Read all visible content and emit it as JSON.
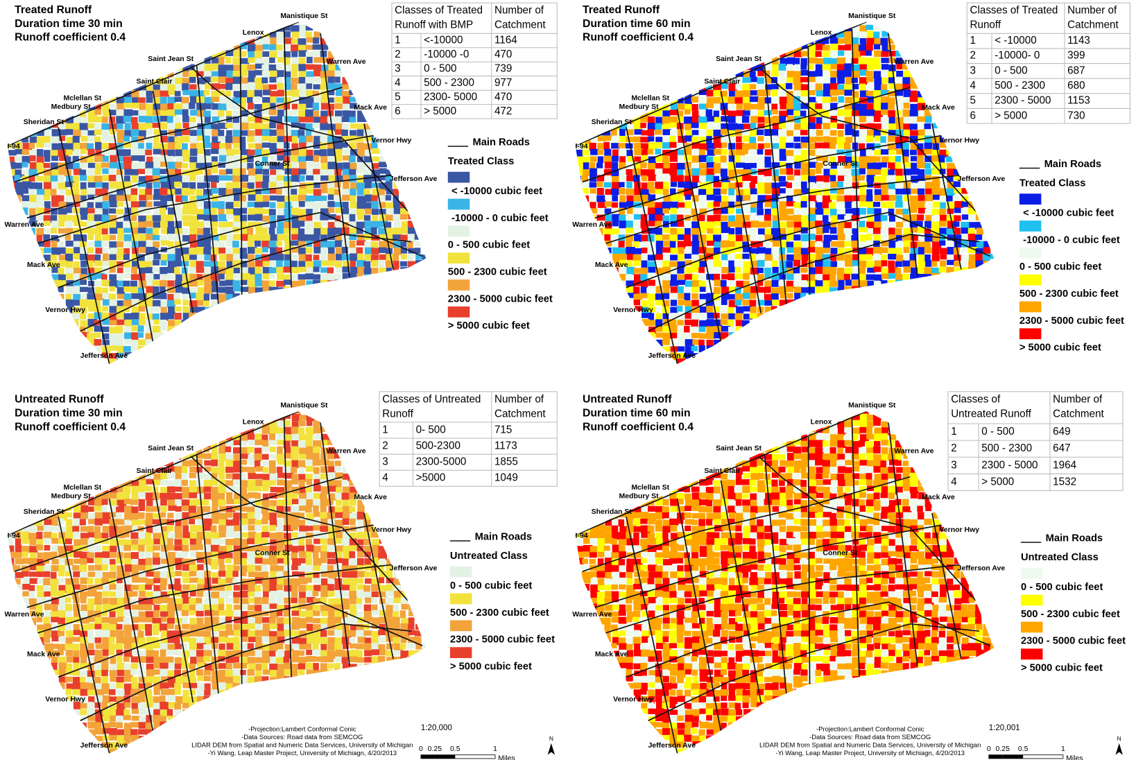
{
  "panels": [
    {
      "title": [
        "Treated Runoff",
        "Duration time 30 min",
        "Runoff coefficient 0.4"
      ],
      "table": {
        "header": [
          "Classes of Treated Runoff with BMP",
          "Number of Catchment"
        ],
        "rows": [
          [
            1,
            "<-10000",
            1164
          ],
          [
            2,
            "-10000 -0",
            470
          ],
          [
            3,
            "0 - 500",
            739
          ],
          [
            4,
            "500 - 2300",
            977
          ],
          [
            5,
            "2300- 5000",
            470
          ],
          [
            6,
            "> 5000",
            472
          ]
        ]
      },
      "legend": {
        "roads": "Main Roads",
        "title": "Treated Class",
        "classes": [
          {
            "label": "< -10000 cubic feet",
            "color": "#3a57a4"
          },
          {
            "label": "-10000 - 0 cubic feet",
            "color": "#3ab4e6"
          },
          {
            "label": "0 - 500 cubic feet",
            "color": "#e4f2e4"
          },
          {
            "label": "500 - 2300 cubic feet",
            "color": "#f2e23c"
          },
          {
            "label": "2300 - 5000 cubic feet",
            "color": "#f2a33a"
          },
          {
            "label": "> 5000 cubic feet",
            "color": "#e8402c"
          }
        ]
      }
    },
    {
      "title": [
        "Treated Runoff",
        "Duration time 60 min",
        "Runoff coefficient 0.4"
      ],
      "table": {
        "header": [
          "Classes of Treated Runoff",
          "Number of Catchment"
        ],
        "rows": [
          [
            1,
            "< -10000",
            1143
          ],
          [
            2,
            "-10000- 0",
            399
          ],
          [
            3,
            "0 - 500",
            687
          ],
          [
            4,
            "500 - 2300",
            680
          ],
          [
            5,
            "2300 - 5000",
            1153
          ],
          [
            6,
            "> 5000",
            730
          ]
        ]
      },
      "legend": {
        "roads": "Main Roads",
        "title": "Treated Class",
        "classes": [
          {
            "label": "< -10000 cubic feet",
            "color": "#0a1ee6"
          },
          {
            "label": "-10000 - 0 cubic feet",
            "color": "#20c0f0"
          },
          {
            "label": "0 - 500 cubic feet",
            "color": "#eefaee"
          },
          {
            "label": "500 - 2300 cubic feet",
            "color": "#ffff00"
          },
          {
            "label": "2300 - 5000 cubic feet",
            "color": "#ffa500"
          },
          {
            "label": "> 5000 cubic feet",
            "color": "#ff0000"
          }
        ]
      }
    },
    {
      "title": [
        "Untreated Runoff",
        "Duration time 30 min",
        "Runoff coefficient 0.4"
      ],
      "table": {
        "header": [
          "Classes of Untreated Runoff",
          "Number of Catchment"
        ],
        "rows": [
          [
            1,
            "0- 500",
            715
          ],
          [
            2,
            "500-2300",
            1173
          ],
          [
            3,
            "2300-5000",
            1855
          ],
          [
            4,
            ">5000",
            1049
          ]
        ]
      },
      "legend": {
        "roads": "Main Roads",
        "title": "Untreated Class",
        "classes": [
          {
            "label": "0 - 500 cubic feet",
            "color": "#e4f2e4"
          },
          {
            "label": "500 - 2300 cubic feet",
            "color": "#f2e23c"
          },
          {
            "label": "2300 - 5000 cubic feet",
            "color": "#f2a33a"
          },
          {
            "label": "> 5000 cubic feet",
            "color": "#e8402c"
          }
        ]
      },
      "footer": {
        "notes": [
          "-Projection:Lambert Conformal Conic",
          "-Data Sources: Road data from SEMCOG",
          "LIDAR DEM from Spatial and Numeric Data Services, University of Michigan",
          "-Yi Wang, Leap Master Project, University of Michiagn, 4/20/2013"
        ],
        "scale": "1:20,000",
        "scale_bar": [
          "0",
          "0.25",
          "0.5",
          "1"
        ],
        "unit": "Miles",
        "north": "N"
      }
    },
    {
      "title": [
        "Untreated Runoff",
        "Duration time 60 min",
        "Runoff coefficient 0.4"
      ],
      "table": {
        "header": [
          "Classes of Untreated Runoff",
          "Number of Catchment"
        ],
        "rows": [
          [
            1,
            "0 - 500",
            649
          ],
          [
            2,
            "500 - 2300",
            647
          ],
          [
            3,
            "2300 - 5000",
            1964
          ],
          [
            4,
            "> 5000",
            1532
          ]
        ]
      },
      "legend": {
        "roads": "Main Roads",
        "title": "Untreated Class",
        "classes": [
          {
            "label": "0 - 500 cubic feet",
            "color": "#eefaee"
          },
          {
            "label": "500 - 2300 cubic feet",
            "color": "#ffff00"
          },
          {
            "label": "2300 - 5000 cubic feet",
            "color": "#ffa500"
          },
          {
            "label": "> 5000 cubic feet",
            "color": "#ff0000"
          }
        ]
      },
      "footer": {
        "notes": [
          "-Projection:Lambert Conformal Conic",
          "-Data Sources: Road data from SEMCOG",
          "LIDAR DEM from Spatial and Numeric Data Services, University of Michigan",
          "-Yi Wang, Leap Master Project, University of Michiagn, 4/20/2013"
        ],
        "scale": "1:20,001",
        "scale_bar": [
          "0",
          "0.25",
          "0.5",
          "1"
        ],
        "unit": "Miles",
        "north": "N"
      }
    }
  ],
  "streets": [
    "Manistique St",
    "Lenox",
    "Saint Jean St",
    "Warren Ave",
    "Saint Clair",
    "Mclellan St",
    "Medbury St",
    "Mack Ave",
    "Sheridan St",
    "Vernor Hwy",
    "I-94",
    "Conner St",
    "Jefferson Ave",
    "Warren Ave",
    "Mack Ave",
    "Vernor Hwy",
    "Jefferson Ave"
  ]
}
